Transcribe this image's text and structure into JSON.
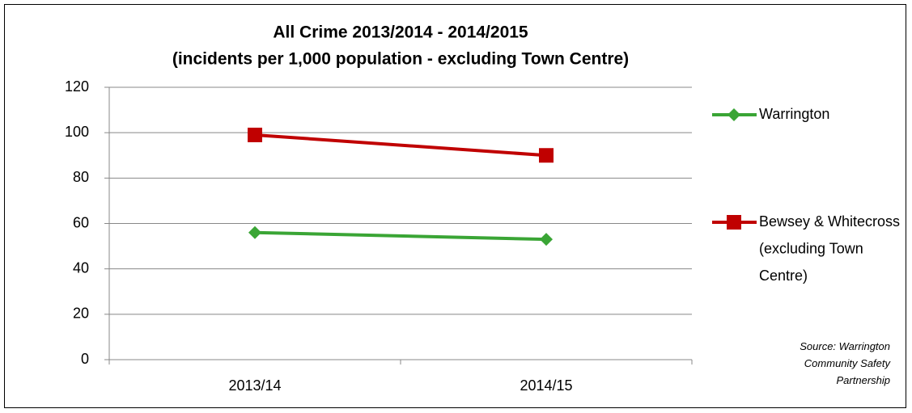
{
  "chart_data": {
    "type": "line",
    "title": "All Crime 2013/2014 - 2014/2015",
    "subtitle": "(incidents per 1,000 population - excluding Town Centre)",
    "categories": [
      "2013/14",
      "2014/15"
    ],
    "series": [
      {
        "name": "Warrington",
        "color": "#3aa535",
        "marker": "diamond",
        "values": [
          56,
          53
        ]
      },
      {
        "name": "Bewsey & Whitecross (excluding Town Centre)",
        "color": "#c00000",
        "marker": "square",
        "values": [
          99,
          90
        ]
      }
    ],
    "ylim": [
      0,
      120
    ],
    "yticks": [
      0,
      20,
      40,
      60,
      80,
      100,
      120
    ],
    "grid": true,
    "legend": "right",
    "annotation": "Source: Warrington Community Safety Partnership"
  }
}
